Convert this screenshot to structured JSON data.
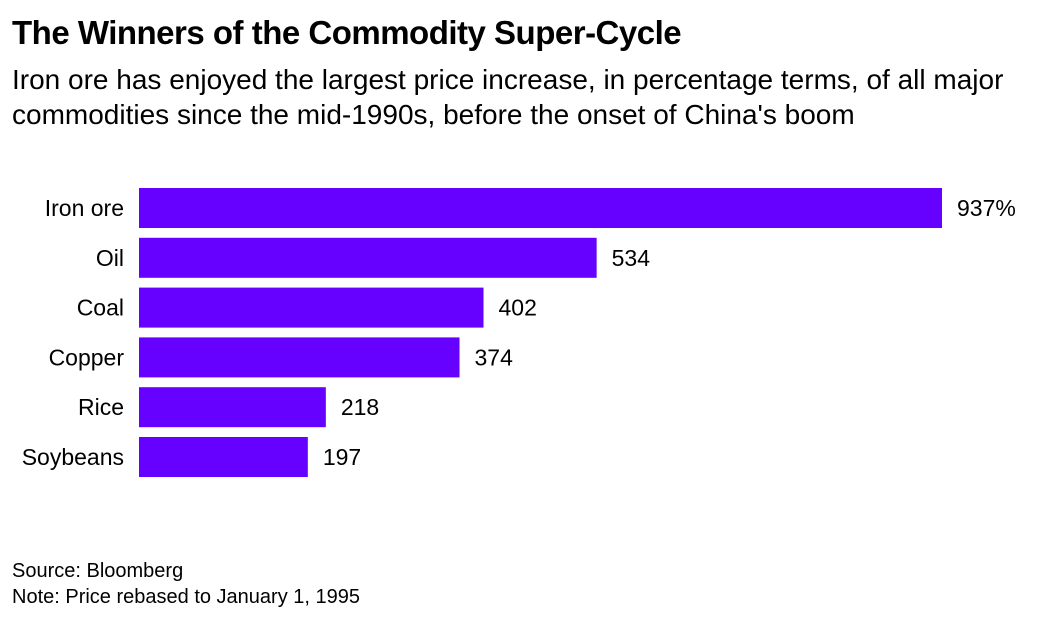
{
  "title": "The Winners of the Commodity Super-Cycle",
  "subtitle": "Iron ore has enjoyed the largest price increase, in percentage terms, of all major commodities since the mid-1990s, before the onset of China's boom",
  "colors": {
    "bar": "#6600ff",
    "text": "#000000",
    "background": "#ffffff"
  },
  "chart_data": {
    "type": "bar",
    "orientation": "horizontal",
    "categories": [
      "Iron ore",
      "Oil",
      "Coal",
      "Copper",
      "Rice",
      "Soybeans"
    ],
    "values": [
      937,
      534,
      402,
      374,
      218,
      197
    ],
    "value_labels": [
      "937%",
      "534",
      "402",
      "374",
      "218",
      "197"
    ],
    "xlim": [
      0,
      937
    ],
    "grid": false,
    "legend": "none"
  },
  "footer": {
    "source": "Source: Bloomberg",
    "note": "Note: Price rebased to January 1, 1995"
  }
}
